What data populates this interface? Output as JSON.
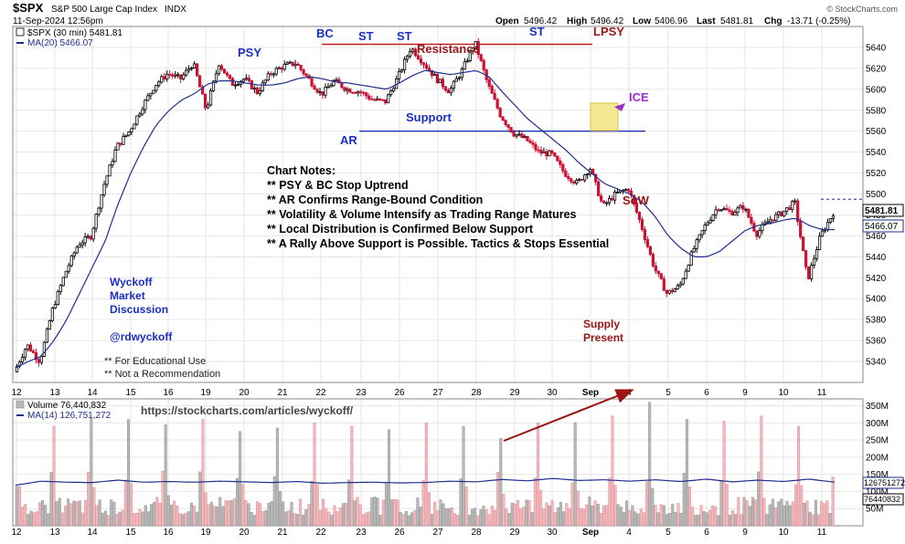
{
  "header": {
    "symbol": "$SPX",
    "name": "S&P 500 Large Cap Index",
    "exchange": "INDX",
    "date": "11-Sep-2024 12:56pm",
    "quote": {
      "open_label": "Open",
      "open": "5496.42",
      "high_label": "High",
      "high": "5496.42",
      "low_label": "Low",
      "low": "5406.96",
      "last_label": "Last",
      "last": "5481.81",
      "chg_label": "Chg",
      "chg": "-13.71 (-0.25%)"
    },
    "watermark": "© StockCharts.com"
  },
  "legend": {
    "price_series": "$SPX (30 min) 5481.81",
    "ma_series": "MA(20) 5466.07",
    "volume_series": "Volume 76,440,832",
    "volume_ma_series": "MA(14) 126,751,272"
  },
  "colors": {
    "up_candle": "#000000",
    "down_candle": "#cc1133",
    "ma_line": "#1f2f8f",
    "resistance_line": "#c22020",
    "support_line": "#1f35b5",
    "blue_text": "#1a2fc4",
    "red_text": "#9a1414",
    "ice_text": "#9b2fd0",
    "ice_box": "#f0e070",
    "volume_up": "#b8b8b8",
    "volume_down": "#f2b8bc",
    "arrow": "#9a1414",
    "grid": "#e6e6e6"
  },
  "annotations": {
    "psy": "PSY",
    "bc": "BC",
    "st1": "ST",
    "st2": "ST",
    "st3": "ST",
    "lpsy": "LPSY",
    "resistance": "Resistance",
    "support": "Support",
    "ar": "AR",
    "ice": "ICE",
    "sow": "SoW",
    "supply": [
      "Supply",
      "Present"
    ],
    "wyckoff": [
      "Wyckoff",
      "Market",
      "Discussion"
    ],
    "handle": "@rdwyckoff",
    "disclaimer": [
      "** For Educational Use",
      "** Not a Recommendation"
    ],
    "url": "https://stockcharts.com/articles/wyckoff/",
    "notes_title": "Chart Notes:",
    "notes": [
      "** PSY & BC Stop Uptrend",
      "** AR Confirms Range-Bound Condition",
      "** Volatility & Volume Intensify as Trading Range Matures",
      "** Local Distribution is Confirmed Below Support",
      "** A Rally Above Support is Possible. Tactics & Stops Essential"
    ]
  },
  "chart_data": {
    "type": "line",
    "x_axis": {
      "tick_labels": [
        "12",
        "13",
        "14",
        "15",
        "16",
        "19",
        "20",
        "21",
        "22",
        "23",
        "26",
        "27",
        "28",
        "29",
        "30",
        "Sep",
        "4",
        "5",
        "6",
        "9",
        "10",
        "11"
      ]
    },
    "price_axis": {
      "range": [
        5320,
        5660
      ],
      "ticks": [
        5340,
        5360,
        5380,
        5400,
        5420,
        5440,
        5460,
        5480,
        5500,
        5520,
        5540,
        5560,
        5580,
        5600,
        5620,
        5640
      ],
      "last_tag": "5481.81",
      "ma_tag": "5466.07"
    },
    "volume_axis": {
      "range": [
        0,
        370
      ],
      "unit": "M",
      "ticks": [
        50,
        100,
        150,
        200,
        250,
        300,
        350
      ],
      "tick_labels": [
        "50M",
        "100M",
        "150M",
        "200M",
        "250M",
        "300M",
        "350M"
      ],
      "ma_tag": "126751272",
      "last_tag": "76440832"
    },
    "levels": {
      "resistance": 5643,
      "support": 5560
    },
    "price_path": [
      [
        0,
        5330
      ],
      [
        1,
        5356
      ],
      [
        2,
        5340
      ],
      [
        3,
        5390
      ],
      [
        4,
        5425
      ],
      [
        5,
        5452
      ],
      [
        6,
        5460
      ],
      [
        7,
        5508
      ],
      [
        8,
        5545
      ],
      [
        9,
        5560
      ],
      [
        10,
        5583
      ],
      [
        11,
        5604
      ],
      [
        12,
        5615
      ],
      [
        13,
        5610
      ],
      [
        14,
        5625
      ],
      [
        15,
        5580
      ],
      [
        16,
        5625
      ],
      [
        17,
        5605
      ],
      [
        18,
        5610
      ],
      [
        19,
        5597
      ],
      [
        20,
        5615
      ],
      [
        21,
        5622
      ],
      [
        22,
        5625
      ],
      [
        23,
        5610
      ],
      [
        24,
        5595
      ],
      [
        25,
        5608
      ],
      [
        26,
        5600
      ],
      [
        27,
        5598
      ],
      [
        28,
        5590
      ],
      [
        29,
        5588
      ],
      [
        30,
        5612
      ],
      [
        31,
        5640
      ],
      [
        32,
        5625
      ],
      [
        33,
        5610
      ],
      [
        34,
        5598
      ],
      [
        35,
        5618
      ],
      [
        36,
        5645
      ],
      [
        37,
        5605
      ],
      [
        38,
        5575
      ],
      [
        39,
        5558
      ],
      [
        40,
        5552
      ],
      [
        41,
        5540
      ],
      [
        42,
        5538
      ],
      [
        43,
        5520
      ],
      [
        44,
        5510
      ],
      [
        45,
        5525
      ],
      [
        46,
        5488
      ],
      [
        47,
        5500
      ],
      [
        48,
        5505
      ],
      [
        49,
        5470
      ],
      [
        50,
        5430
      ],
      [
        51,
        5405
      ],
      [
        52,
        5412
      ],
      [
        53,
        5445
      ],
      [
        54,
        5470
      ],
      [
        55,
        5488
      ],
      [
        56,
        5482
      ],
      [
        57,
        5488
      ],
      [
        58,
        5462
      ],
      [
        59,
        5475
      ],
      [
        60,
        5482
      ],
      [
        61,
        5492
      ],
      [
        62,
        5418
      ],
      [
        63,
        5460
      ],
      [
        64,
        5482
      ]
    ],
    "ma_path": [
      [
        0,
        5334
      ],
      [
        1,
        5340
      ],
      [
        2,
        5345
      ],
      [
        3,
        5360
      ],
      [
        4,
        5380
      ],
      [
        5,
        5405
      ],
      [
        6,
        5430
      ],
      [
        7,
        5455
      ],
      [
        8,
        5490
      ],
      [
        9,
        5520
      ],
      [
        10,
        5545
      ],
      [
        11,
        5566
      ],
      [
        12,
        5580
      ],
      [
        13,
        5590
      ],
      [
        14,
        5596
      ],
      [
        15,
        5605
      ],
      [
        16,
        5608
      ],
      [
        17,
        5608
      ],
      [
        18,
        5606
      ],
      [
        19,
        5604
      ],
      [
        20,
        5604
      ],
      [
        21,
        5606
      ],
      [
        22,
        5610
      ],
      [
        23,
        5612
      ],
      [
        24,
        5610
      ],
      [
        25,
        5607
      ],
      [
        26,
        5606
      ],
      [
        27,
        5604
      ],
      [
        28,
        5602
      ],
      [
        29,
        5600
      ],
      [
        30,
        5606
      ],
      [
        31,
        5613
      ],
      [
        32,
        5618
      ],
      [
        33,
        5616
      ],
      [
        34,
        5614
      ],
      [
        35,
        5616
      ],
      [
        36,
        5618
      ],
      [
        37,
        5612
      ],
      [
        38,
        5598
      ],
      [
        39,
        5585
      ],
      [
        40,
        5572
      ],
      [
        41,
        5562
      ],
      [
        42,
        5552
      ],
      [
        43,
        5542
      ],
      [
        44,
        5530
      ],
      [
        45,
        5520
      ],
      [
        46,
        5510
      ],
      [
        47,
        5505
      ],
      [
        48,
        5500
      ],
      [
        49,
        5492
      ],
      [
        50,
        5478
      ],
      [
        51,
        5460
      ],
      [
        52,
        5448
      ],
      [
        53,
        5440
      ],
      [
        54,
        5440
      ],
      [
        55,
        5445
      ],
      [
        56,
        5455
      ],
      [
        57,
        5465
      ],
      [
        58,
        5470
      ],
      [
        59,
        5472
      ],
      [
        60,
        5475
      ],
      [
        61,
        5477
      ],
      [
        62,
        5470
      ],
      [
        63,
        5466
      ],
      [
        64,
        5466
      ]
    ],
    "volume_peaks": [
      115,
      290,
      315,
      310,
      295,
      310,
      275,
      285,
      300,
      290,
      280,
      300,
      290,
      255,
      300,
      300,
      320,
      360,
      310,
      305,
      320,
      290,
      300
    ],
    "volume_ma_path": [
      [
        0,
        118
      ],
      [
        2,
        130
      ],
      [
        4,
        127
      ],
      [
        6,
        126
      ],
      [
        8,
        133
      ],
      [
        10,
        127
      ],
      [
        12,
        129
      ],
      [
        14,
        127
      ],
      [
        16,
        130
      ],
      [
        18,
        128
      ],
      [
        20,
        126
      ],
      [
        22,
        129
      ],
      [
        24,
        124
      ],
      [
        26,
        126
      ],
      [
        28,
        127
      ],
      [
        30,
        125
      ],
      [
        32,
        126
      ],
      [
        34,
        130
      ],
      [
        36,
        128
      ],
      [
        38,
        135
      ],
      [
        40,
        131
      ],
      [
        42,
        138
      ],
      [
        44,
        132
      ],
      [
        46,
        134
      ],
      [
        48,
        130
      ],
      [
        50,
        134
      ],
      [
        52,
        129
      ],
      [
        54,
        136
      ],
      [
        56,
        128
      ],
      [
        58,
        133
      ],
      [
        60,
        129
      ],
      [
        62,
        136
      ],
      [
        64,
        127
      ]
    ]
  }
}
